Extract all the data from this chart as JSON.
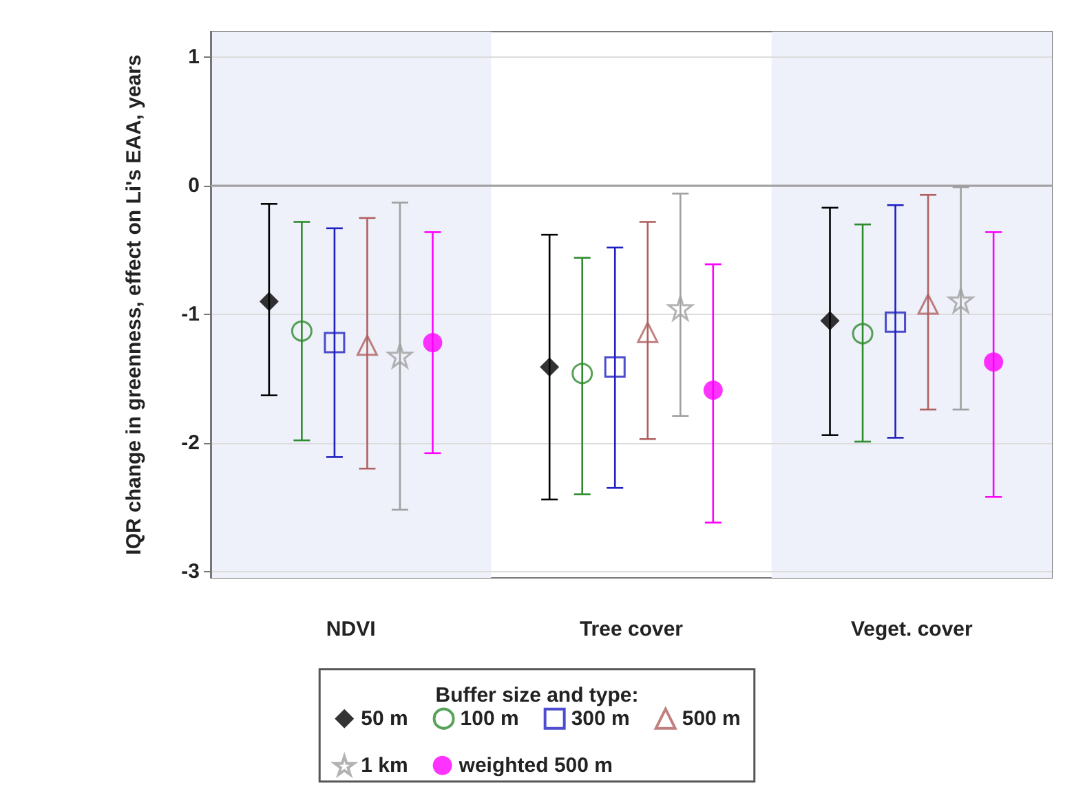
{
  "chart_data": {
    "type": "scatter",
    "ylabel": "IQR change in greenness, effect on Li's EAA, years",
    "legend_title": "Buffer size and type:",
    "categories": [
      "NDVI",
      "Tree cover",
      "Veget. cover"
    ],
    "ylim": [
      -3.05,
      1.2
    ],
    "yticks": [
      -3,
      -2,
      -1,
      0,
      1
    ],
    "grid": "y",
    "legend": "bottom",
    "ref_lines": [
      {
        "axis": "y",
        "value": 0,
        "color": "#a0a0a0"
      }
    ],
    "bands": [
      {
        "axis": "x",
        "from": "NDVI",
        "to": "NDVI",
        "color": "#eef1fa"
      },
      {
        "axis": "x",
        "from": "Veget. cover",
        "to": "Veget. cover",
        "color": "#eef1fa"
      }
    ],
    "series": [
      {
        "name": "50 m",
        "color": "#000000",
        "marker": "diamond",
        "values": [
          -0.9,
          -1.41,
          -1.05
        ],
        "errors": [
          [
            -1.63,
            -0.14
          ],
          [
            -2.44,
            -0.38
          ],
          [
            -1.94,
            -0.17
          ]
        ]
      },
      {
        "name": "100 m",
        "color": "#2e8b2e",
        "marker": "circle",
        "values": [
          -1.13,
          -1.46,
          -1.15
        ],
        "errors": [
          [
            -1.98,
            -0.28
          ],
          [
            -2.4,
            -0.56
          ],
          [
            -1.99,
            -0.3
          ]
        ]
      },
      {
        "name": "300 m",
        "color": "#2020c0",
        "marker": "square",
        "values": [
          -1.22,
          -1.41,
          -1.06
        ],
        "errors": [
          [
            -2.11,
            -0.33
          ],
          [
            -2.35,
            -0.48
          ],
          [
            -1.96,
            -0.15
          ]
        ]
      },
      {
        "name": "500 m",
        "color": "#b06060",
        "marker": "triangle",
        "values": [
          -1.24,
          -1.14,
          -0.92
        ],
        "errors": [
          [
            -2.2,
            -0.25
          ],
          [
            -1.97,
            -0.28
          ],
          [
            -1.74,
            -0.07
          ]
        ]
      },
      {
        "name": "1 km",
        "color": "#a0a0a0",
        "marker": "star",
        "values": [
          -1.32,
          -0.95,
          -0.89
        ],
        "errors": [
          [
            -2.52,
            -0.13
          ],
          [
            -1.79,
            -0.06
          ],
          [
            -1.74,
            -0.01
          ]
        ]
      },
      {
        "name": "weighted 500 m",
        "color": "#ff00ff",
        "marker": "circle",
        "values": [
          -1.22,
          -1.59,
          -1.37
        ],
        "errors": [
          [
            -2.08,
            -0.36
          ],
          [
            -2.62,
            -0.61
          ],
          [
            -2.42,
            -0.36
          ]
        ]
      }
    ]
  }
}
